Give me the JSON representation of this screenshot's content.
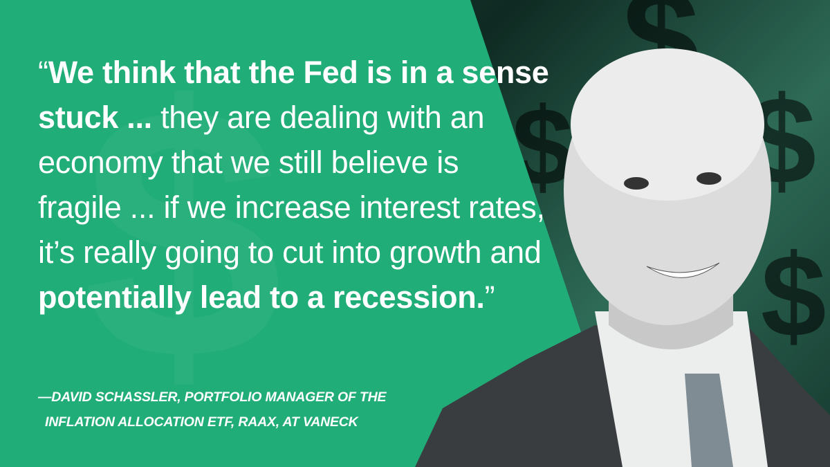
{
  "quote": {
    "open_mark": "“",
    "bold_1": "We think that the Fed is in a sense stuck ...",
    "regular": " they are dealing with an economy that we still believe is fragile ... if we increase interest rates, it’s really going to cut into growth and ",
    "bold_2": "potentially lead to a recession.",
    "close_mark": "”"
  },
  "attribution": {
    "line1": "—DAVID SCHASSLER, PORTFOLIO MANAGER OF THE",
    "line2": "INFLATION ALLOCATION ETF, RAAX, AT VANECK"
  },
  "colors": {
    "background": "#21ad78",
    "text": "#ffffff"
  },
  "background_glyph": "$"
}
